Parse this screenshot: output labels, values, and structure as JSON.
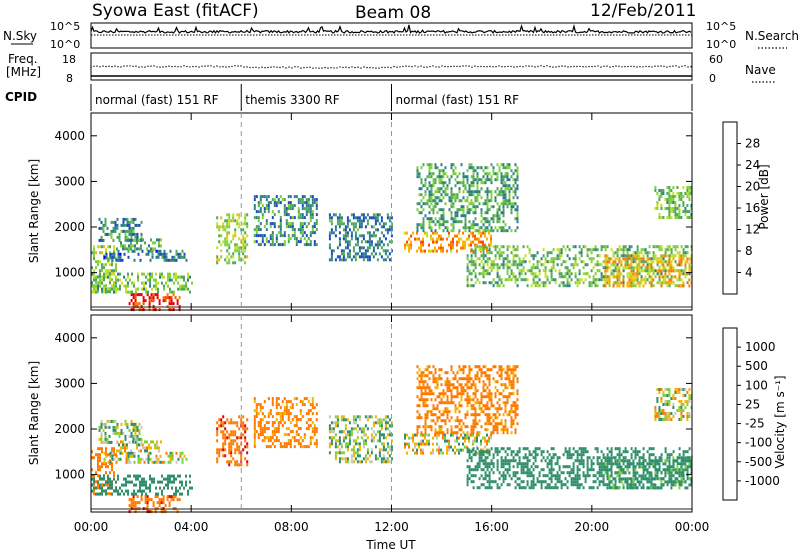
{
  "header": {
    "station": "Syowa East (fitACF)",
    "beam": "Beam 08",
    "date": "12/Feb/2011"
  },
  "noise_panel": {
    "left_label": "N.Sky",
    "right_label": "N.Search",
    "left_ticks": [
      "10^5",
      "10^0"
    ],
    "right_ticks": [
      "10^5",
      "10^0"
    ]
  },
  "freq_panel": {
    "label_line1": "Freq.",
    "label_line2": "[MHz]",
    "left_ticks": [
      "18",
      "8"
    ],
    "right_ticks": [
      "60",
      "0"
    ],
    "right_label": "Nave"
  },
  "cpid_panel": {
    "label": "CPID",
    "modes": [
      {
        "name": "normal (fast) 151 RF",
        "start_hour": 0,
        "end_hour": 6
      },
      {
        "name": "themis 3300 RF",
        "start_hour": 6,
        "end_hour": 12
      },
      {
        "name": "normal (fast) 151 RF",
        "start_hour": 12,
        "end_hour": 24
      }
    ]
  },
  "time_axis": {
    "label": "Time UT",
    "ticks": [
      "00:00",
      "04:00",
      "08:00",
      "12:00",
      "16:00",
      "20:00",
      "00:00"
    ]
  },
  "power_panel": {
    "ylabel": "Slant Range [km]",
    "yticks": [
      "1000",
      "2000",
      "3000",
      "4000"
    ],
    "colorbar_label": "Power [dB]",
    "colorbar_ticks": [
      "4",
      "8",
      "12",
      "16",
      "20",
      "24",
      "28"
    ],
    "colors": [
      "#0000ff",
      "#1e4bbd",
      "#2f7f8a",
      "#4ea65f",
      "#7fd13a",
      "#c6e02a",
      "#ffb000",
      "#ff7a00",
      "#ff4a00",
      "#e60000"
    ]
  },
  "velocity_panel": {
    "ylabel": "Slant Range [km]",
    "yticks": [
      "1000",
      "2000",
      "3000",
      "4000"
    ],
    "colorbar_label": "Velocity [m s⁻¹]",
    "colorbar_ticks": [
      "1000",
      "500",
      "100",
      "25",
      "-25",
      "-100",
      "-500",
      "-1000"
    ],
    "colors": [
      "#1a2db8",
      "#2a6fa8",
      "#2f8f6a",
      "#7fd13a",
      "#c8c8c8",
      "#f4b400",
      "#ff7a00",
      "#e60000"
    ]
  },
  "chart_data": {
    "type": "heatmap",
    "xlim": [
      0,
      24
    ],
    "ylim": [
      180,
      4500
    ],
    "x_unit": "hours UT",
    "y_unit": "km",
    "power_scale_db": [
      0,
      30
    ],
    "velocity_scale": [
      -1000,
      1000
    ],
    "echo_regions": [
      {
        "t": [
          0.0,
          1.0
        ],
        "r": [
          600,
          1600
        ],
        "power": 14,
        "velocity": -300
      },
      {
        "t": [
          0.3,
          2.0
        ],
        "r": [
          1700,
          2200
        ],
        "power": 8,
        "velocity": 60
      },
      {
        "t": [
          1.0,
          2.8
        ],
        "r": [
          1550,
          1750
        ],
        "power": 10,
        "velocity": 0
      },
      {
        "t": [
          0.5,
          3.8
        ],
        "r": [
          1300,
          1500
        ],
        "power": 6,
        "velocity": 0
      },
      {
        "t": [
          1.5,
          3.5
        ],
        "r": [
          200,
          550
        ],
        "power": 28,
        "velocity": -400
      },
      {
        "t": [
          0.0,
          4.0
        ],
        "r": [
          600,
          1000
        ],
        "power": 12,
        "velocity": 300
      },
      {
        "t": [
          5.0,
          6.2
        ],
        "r": [
          1200,
          2300
        ],
        "power": 14,
        "velocity": -400
      },
      {
        "t": [
          6.5,
          9.0
        ],
        "r": [
          1600,
          2700
        ],
        "power": 8,
        "velocity": -200
      },
      {
        "t": [
          9.5,
          12.0
        ],
        "r": [
          1300,
          2300
        ],
        "power": 7,
        "velocity": 50
      },
      {
        "t": [
          12.5,
          16.0
        ],
        "r": [
          1500,
          1900
        ],
        "power": 22,
        "velocity": 0
      },
      {
        "t": [
          13.0,
          17.0
        ],
        "r": [
          1900,
          3400
        ],
        "power": 10,
        "velocity": -200
      },
      {
        "t": [
          15.0,
          24.0
        ],
        "r": [
          700,
          1600
        ],
        "power": 12,
        "velocity": 300
      },
      {
        "t": [
          20.5,
          24.0
        ],
        "r": [
          700,
          1400
        ],
        "power": 20,
        "velocity": 200
      },
      {
        "t": [
          22.5,
          24.0
        ],
        "r": [
          2200,
          2900
        ],
        "power": 12,
        "velocity": 0
      }
    ]
  }
}
